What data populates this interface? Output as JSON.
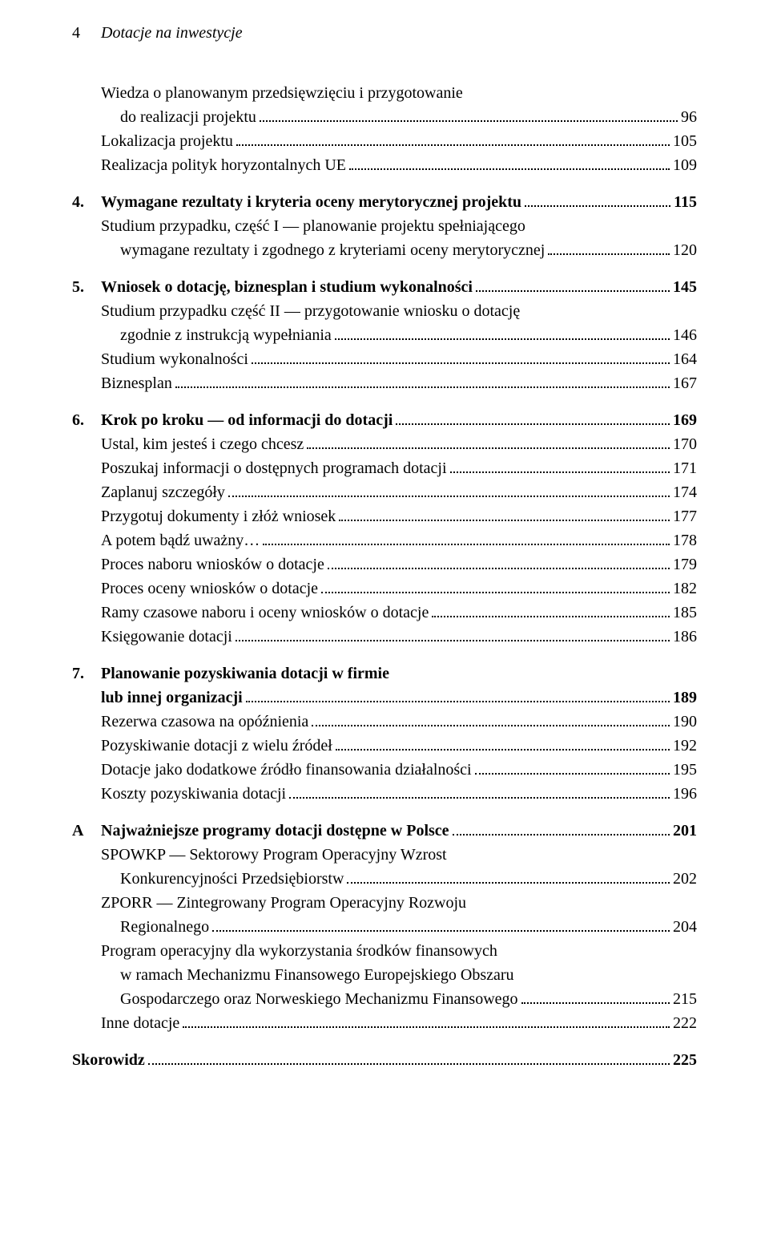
{
  "page": {
    "number": "4",
    "running_title": "Dotacje na inwestycje"
  },
  "entries": [
    {
      "type": "sub",
      "label": "Wiedza o planowanym przedsięwzięciu i przygotowanie",
      "continuation": "do realizacji projektu",
      "page": "96",
      "indent": 1
    },
    {
      "type": "sub",
      "label": "Lokalizacja projektu",
      "page": "105",
      "indent": 1
    },
    {
      "type": "sub",
      "label": "Realizacja polityk horyzontalnych UE",
      "page": "109",
      "indent": 1
    },
    {
      "type": "section",
      "num": "4.",
      "label": "Wymagane rezultaty i kryteria oceny merytorycznej projektu",
      "page": "115"
    },
    {
      "type": "sub",
      "label": "Studium przypadku, część I — planowanie projektu spełniającego",
      "continuation": "wymagane rezultaty i zgodnego z kryteriami oceny merytorycznej",
      "page": "120",
      "indent": 1
    },
    {
      "type": "section",
      "num": "5.",
      "label": "Wniosek o dotację, biznesplan i studium wykonalności",
      "page": "145"
    },
    {
      "type": "sub",
      "label": "Studium przypadku część II — przygotowanie wniosku o dotację",
      "continuation": "zgodnie z instrukcją wypełniania",
      "page": "146",
      "indent": 1
    },
    {
      "type": "sub",
      "label": "Studium wykonalności",
      "page": "164",
      "indent": 1
    },
    {
      "type": "sub",
      "label": "Biznesplan",
      "page": "167",
      "indent": 1
    },
    {
      "type": "section",
      "num": "6.",
      "label": "Krok po kroku — od informacji do dotacji",
      "page": "169"
    },
    {
      "type": "sub",
      "label": "Ustal, kim jesteś i czego chcesz",
      "page": "170",
      "indent": 1
    },
    {
      "type": "sub",
      "label": "Poszukaj informacji o dostępnych programach dotacji",
      "page": "171",
      "indent": 1
    },
    {
      "type": "sub",
      "label": "Zaplanuj szczegóły",
      "page": "174",
      "indent": 1
    },
    {
      "type": "sub",
      "label": "Przygotuj dokumenty i złóż wniosek",
      "page": "177",
      "indent": 1
    },
    {
      "type": "sub",
      "label": "A potem bądź uważny…",
      "page": "178",
      "indent": 1
    },
    {
      "type": "sub",
      "label": "Proces naboru wniosków o dotacje",
      "page": "179",
      "indent": 1
    },
    {
      "type": "sub",
      "label": "Proces oceny wniosków o dotacje",
      "page": "182",
      "indent": 1
    },
    {
      "type": "sub",
      "label": "Ramy czasowe naboru i oceny wniosków o dotacje",
      "page": "185",
      "indent": 1
    },
    {
      "type": "sub",
      "label": "Księgowanie dotacji",
      "page": "186",
      "indent": 1
    },
    {
      "type": "section",
      "num": "7.",
      "label": "Planowanie pozyskiwania dotacji w firmie",
      "continuation_bold": "lub innej organizacji",
      "page": "189"
    },
    {
      "type": "sub",
      "label": "Rezerwa czasowa na opóźnienia",
      "page": "190",
      "indent": 1
    },
    {
      "type": "sub",
      "label": "Pozyskiwanie dotacji z wielu źródeł",
      "page": "192",
      "indent": 1
    },
    {
      "type": "sub",
      "label": "Dotacje jako dodatkowe źródło finansowania działalności",
      "page": "195",
      "indent": 1
    },
    {
      "type": "sub",
      "label": "Koszty pozyskiwania dotacji",
      "page": "196",
      "indent": 1
    },
    {
      "type": "section",
      "num": "A",
      "label": "Najważniejsze programy dotacji dostępne w Polsce",
      "page": "201"
    },
    {
      "type": "sub",
      "label": "SPOWKP — Sektorowy Program Operacyjny Wzrost",
      "continuation": "Konkurencyjności Przedsiębiorstw",
      "page": "202",
      "indent": 1
    },
    {
      "type": "sub",
      "label": "ZPORR — Zintegrowany Program Operacyjny Rozwoju",
      "continuation": "Regionalnego",
      "page": "204",
      "indent": 1
    },
    {
      "type": "sub",
      "label": "Program operacyjny dla wykorzystania środków finansowych",
      "continuation": "w ramach Mechanizmu Finansowego Europejskiego Obszaru\nGospodarczego oraz Norweskiego Mechanizmu Finansowego",
      "page": "215",
      "indent": 1,
      "continuation_indent": 2
    },
    {
      "type": "sub",
      "label": "Inne dotacje",
      "page": "222",
      "indent": 1
    },
    {
      "type": "skorowidz",
      "label": "Skorowidz",
      "page": "225"
    }
  ]
}
